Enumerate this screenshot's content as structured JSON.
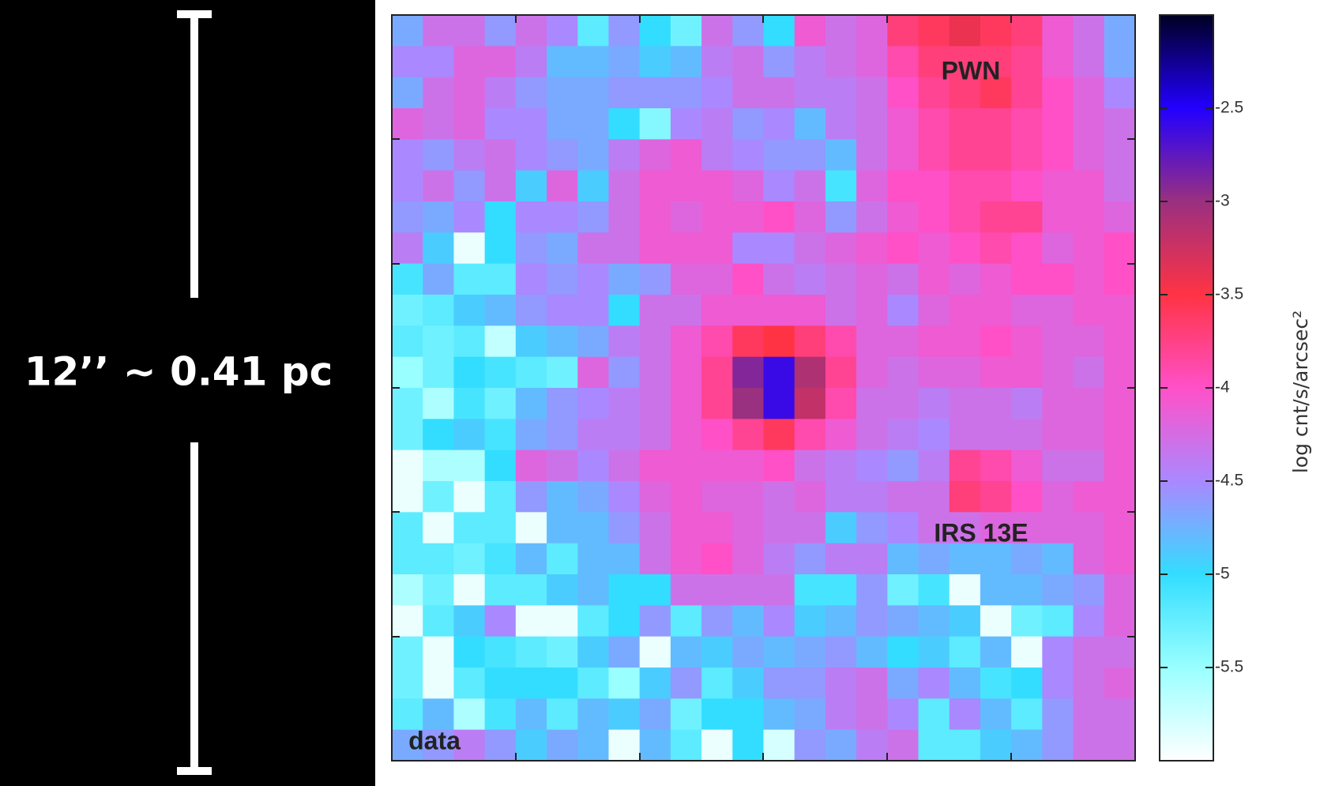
{
  "chart_data": {
    "type": "heatmap",
    "annotations": [
      "PWN",
      "IRS 13E",
      "data"
    ],
    "scale_label": "12’’ ~ 0.41 pc",
    "colorbar_label": "log cnt/s/arcsec²",
    "zlim": [
      -6,
      -2
    ],
    "colorbar_ticks": [
      -2.5,
      -3,
      -3.5,
      -4,
      -4.5,
      -5,
      -5.5
    ],
    "colormap": [
      "#ffffff",
      "#99ffff",
      "#33ddff",
      "#aa88ff",
      "#ff50c8",
      "#ff3344",
      "#9a3080",
      "#2200ff",
      "#000022"
    ],
    "z": [
      [
        -4.7,
        -4.3,
        -4.3,
        -4.6,
        -4.3,
        -4.5,
        -5.2,
        -4.6,
        -5.0,
        -5.3,
        -4.3,
        -4.6,
        -5.0,
        -4.1,
        -4.3,
        -4.2,
        -3.7,
        -3.6,
        -3.4,
        -3.6,
        -3.7,
        -4.1,
        -4.3,
        -4.7
      ],
      [
        -4.5,
        -4.5,
        -4.2,
        -4.2,
        -4.4,
        -4.8,
        -4.8,
        -4.7,
        -4.9,
        -4.8,
        -4.4,
        -4.3,
        -4.6,
        -4.4,
        -4.3,
        -4.2,
        -3.9,
        -3.7,
        -3.7,
        -3.7,
        -3.8,
        -4.1,
        -4.3,
        -4.7
      ],
      [
        -4.7,
        -4.3,
        -4.2,
        -4.4,
        -4.6,
        -4.7,
        -4.7,
        -4.6,
        -4.6,
        -4.6,
        -4.5,
        -4.3,
        -4.3,
        -4.4,
        -4.4,
        -4.3,
        -4.0,
        -3.8,
        -3.7,
        -3.6,
        -3.8,
        -4.0,
        -4.2,
        -4.5
      ],
      [
        -4.2,
        -4.3,
        -4.2,
        -4.5,
        -4.5,
        -4.7,
        -4.7,
        -5.0,
        -5.4,
        -4.5,
        -4.4,
        -4.6,
        -4.5,
        -4.8,
        -4.4,
        -4.3,
        -4.1,
        -3.9,
        -3.8,
        -3.8,
        -3.9,
        -4.0,
        -4.2,
        -4.3
      ],
      [
        -4.5,
        -4.6,
        -4.4,
        -4.3,
        -4.5,
        -4.6,
        -4.7,
        -4.4,
        -4.2,
        -4.1,
        -4.4,
        -4.5,
        -4.6,
        -4.6,
        -4.8,
        -4.3,
        -4.1,
        -3.9,
        -3.8,
        -3.8,
        -3.9,
        -4.0,
        -4.2,
        -4.3
      ],
      [
        -4.5,
        -4.3,
        -4.6,
        -4.3,
        -4.9,
        -4.2,
        -4.9,
        -4.3,
        -4.1,
        -4.1,
        -4.1,
        -4.2,
        -4.5,
        -4.3,
        -5.1,
        -4.2,
        -4.0,
        -4.0,
        -3.9,
        -3.9,
        -4.0,
        -4.1,
        -4.1,
        -4.3
      ],
      [
        -4.6,
        -4.7,
        -4.5,
        -5.0,
        -4.5,
        -4.5,
        -4.6,
        -4.3,
        -4.1,
        -4.2,
        -4.1,
        -4.1,
        -4.0,
        -4.2,
        -4.6,
        -4.3,
        -4.1,
        -4.0,
        -3.9,
        -3.8,
        -3.8,
        -4.1,
        -4.1,
        -4.2
      ],
      [
        -4.4,
        -4.9,
        -5.9,
        -5.0,
        -4.6,
        -4.7,
        -4.3,
        -4.3,
        -4.1,
        -4.1,
        -4.1,
        -4.5,
        -4.5,
        -4.3,
        -4.2,
        -4.1,
        -4.0,
        -4.1,
        -4.0,
        -3.9,
        -4.0,
        -4.2,
        -4.1,
        -4.0
      ],
      [
        -5.1,
        -4.7,
        -5.2,
        -5.2,
        -4.5,
        -4.6,
        -4.5,
        -4.7,
        -4.6,
        -4.2,
        -4.2,
        -4.0,
        -4.3,
        -4.4,
        -4.3,
        -4.2,
        -4.3,
        -4.1,
        -4.2,
        -4.1,
        -4.0,
        -4.0,
        -4.1,
        -4.0
      ],
      [
        -5.3,
        -5.2,
        -4.9,
        -4.8,
        -4.6,
        -4.5,
        -4.5,
        -5.0,
        -4.3,
        -4.3,
        -4.1,
        -4.1,
        -4.1,
        -4.1,
        -4.3,
        -4.2,
        -4.5,
        -4.2,
        -4.1,
        -4.1,
        -4.2,
        -4.2,
        -4.1,
        -4.1
      ],
      [
        -5.2,
        -5.3,
        -5.2,
        -5.7,
        -4.9,
        -4.8,
        -4.7,
        -4.4,
        -4.3,
        -4.1,
        -3.9,
        -3.6,
        -3.5,
        -3.7,
        -3.9,
        -4.2,
        -4.2,
        -4.1,
        -4.1,
        -4.0,
        -4.1,
        -4.2,
        -4.2,
        -4.1
      ],
      [
        -5.5,
        -5.3,
        -5.0,
        -5.1,
        -5.2,
        -5.3,
        -4.2,
        -4.6,
        -4.3,
        -4.1,
        -3.8,
        -2.9,
        -2.6,
        -3.1,
        -3.8,
        -4.2,
        -4.3,
        -4.2,
        -4.2,
        -4.1,
        -4.1,
        -4.2,
        -4.3,
        -4.1
      ],
      [
        -5.3,
        -5.6,
        -5.1,
        -5.3,
        -4.8,
        -4.6,
        -4.5,
        -4.4,
        -4.3,
        -4.1,
        -3.8,
        -3.0,
        -2.6,
        -3.2,
        -3.9,
        -4.3,
        -4.3,
        -4.4,
        -4.3,
        -4.3,
        -4.4,
        -4.2,
        -4.2,
        -4.1
      ],
      [
        -5.3,
        -5.0,
        -4.9,
        -5.1,
        -4.7,
        -4.6,
        -4.4,
        -4.4,
        -4.3,
        -4.1,
        -4.0,
        -3.8,
        -3.6,
        -3.9,
        -4.1,
        -4.3,
        -4.4,
        -4.5,
        -4.3,
        -4.3,
        -4.3,
        -4.2,
        -4.2,
        -4.1
      ],
      [
        -5.9,
        -5.6,
        -5.6,
        -5.0,
        -4.2,
        -4.3,
        -4.5,
        -4.3,
        -4.1,
        -4.1,
        -4.1,
        -4.1,
        -4.0,
        -4.3,
        -4.4,
        -4.5,
        -4.6,
        -4.4,
        -3.8,
        -3.9,
        -4.1,
        -4.3,
        -4.3,
        -4.1
      ],
      [
        -5.9,
        -5.3,
        -5.9,
        -5.2,
        -4.6,
        -4.8,
        -4.7,
        -4.5,
        -4.2,
        -4.1,
        -4.2,
        -4.2,
        -4.3,
        -4.2,
        -4.4,
        -4.4,
        -4.3,
        -4.3,
        -3.7,
        -3.8,
        -4.0,
        -4.2,
        -4.1,
        -4.1
      ],
      [
        -5.2,
        -5.9,
        -5.2,
        -5.2,
        -5.9,
        -4.8,
        -4.8,
        -4.6,
        -4.3,
        -4.1,
        -4.1,
        -4.2,
        -4.3,
        -4.3,
        -4.9,
        -4.6,
        -4.5,
        -4.3,
        -4.3,
        -4.2,
        -4.2,
        -4.2,
        -4.2,
        -4.1
      ],
      [
        -5.2,
        -5.2,
        -5.3,
        -5.1,
        -4.8,
        -5.2,
        -4.8,
        -4.8,
        -4.3,
        -4.1,
        -4.0,
        -4.2,
        -4.4,
        -4.6,
        -4.4,
        -4.4,
        -4.8,
        -4.7,
        -4.8,
        -4.8,
        -4.7,
        -4.8,
        -4.2,
        -4.1
      ],
      [
        -5.6,
        -5.3,
        -5.9,
        -5.2,
        -5.2,
        -4.9,
        -4.8,
        -5.0,
        -5.0,
        -4.3,
        -4.3,
        -4.3,
        -4.3,
        -5.1,
        -5.1,
        -4.6,
        -5.3,
        -5.1,
        -5.9,
        -4.8,
        -4.8,
        -4.7,
        -4.6,
        -4.2
      ],
      [
        -5.9,
        -5.2,
        -4.9,
        -4.5,
        -5.9,
        -5.9,
        -5.2,
        -5.0,
        -4.6,
        -5.2,
        -4.6,
        -4.8,
        -4.5,
        -4.9,
        -4.8,
        -4.6,
        -4.7,
        -4.8,
        -4.9,
        -5.9,
        -5.3,
        -5.2,
        -4.5,
        -4.2
      ],
      [
        -5.3,
        -5.9,
        -5.0,
        -5.1,
        -5.2,
        -5.3,
        -4.9,
        -4.7,
        -5.9,
        -4.8,
        -4.9,
        -4.7,
        -4.8,
        -4.7,
        -4.6,
        -4.8,
        -5.0,
        -4.9,
        -5.2,
        -4.8,
        -5.9,
        -4.5,
        -4.3,
        -4.3
      ],
      [
        -5.3,
        -5.9,
        -5.2,
        -5.0,
        -5.0,
        -5.0,
        -5.2,
        -5.5,
        -4.9,
        -4.6,
        -5.2,
        -4.9,
        -4.6,
        -4.6,
        -4.4,
        -4.3,
        -4.7,
        -4.5,
        -4.8,
        -5.1,
        -5.0,
        -4.5,
        -4.3,
        -4.2
      ],
      [
        -5.2,
        -4.8,
        -5.6,
        -5.1,
        -4.8,
        -5.2,
        -4.8,
        -4.9,
        -4.7,
        -5.3,
        -5.0,
        -5.0,
        -4.8,
        -4.7,
        -4.4,
        -4.3,
        -4.5,
        -5.2,
        -4.5,
        -4.8,
        -5.2,
        -4.6,
        -4.3,
        -4.3
      ],
      [
        -4.7,
        -4.6,
        -4.4,
        -4.6,
        -4.9,
        -4.7,
        -4.8,
        -5.9,
        -4.8,
        -5.2,
        -5.9,
        -5.0,
        -5.8,
        -4.6,
        -4.7,
        -4.4,
        -4.3,
        -5.2,
        -5.2,
        -4.9,
        -4.8,
        -4.6,
        -4.3,
        -4.3
      ]
    ]
  }
}
